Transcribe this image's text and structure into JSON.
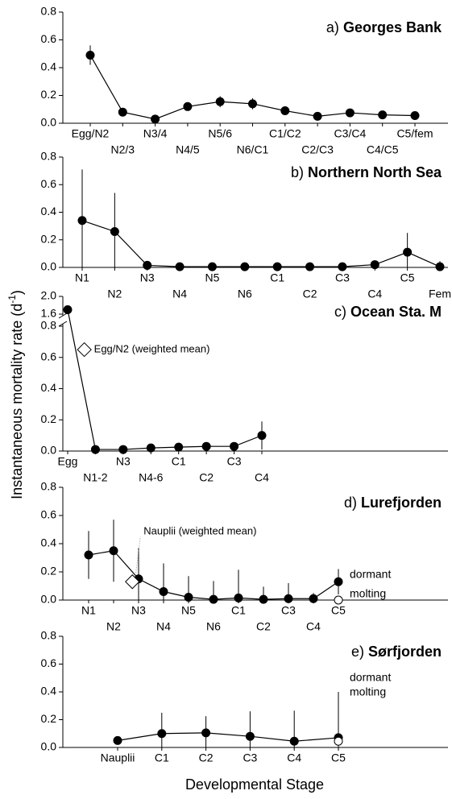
{
  "y_label": "Instantaneous mortality rate (d",
  "y_label_sup": "-1",
  "y_label_end": ")",
  "x_label": "Developmental Stage",
  "chart_data": [
    {
      "type": "line",
      "label": "a)",
      "title": "Georges Bank",
      "categories": [
        "Egg/N2",
        "N2/3",
        "N3/4",
        "N4/5",
        "N5/6",
        "N6/C1",
        "C1/C2",
        "C2/C3",
        "C3/C4",
        "C4/C5",
        "C5/fem"
      ],
      "values": [
        0.49,
        0.08,
        0.03,
        0.12,
        0.155,
        0.14,
        0.09,
        0.05,
        0.075,
        0.06,
        0.055
      ],
      "errors": [
        0.07,
        0.01,
        0,
        0.03,
        0.04,
        0.04,
        0.03,
        0.02,
        0.01,
        0,
        0.01
      ],
      "ylim": [
        0,
        0.8
      ],
      "yticks": [
        {
          "value": 0,
          "label": "0.0"
        },
        0.2,
        0.4,
        0.6,
        0.8
      ],
      "color": "#000000"
    },
    {
      "type": "line",
      "label": "b)",
      "title": "Northern North Sea",
      "categories": [
        "N1",
        "N2",
        "N3",
        "N4",
        "N5",
        "N6",
        "C1",
        "C2",
        "C3",
        "C4",
        "C5",
        "Fem"
      ],
      "values": [
        0.34,
        0.26,
        0.015,
        0.005,
        0.005,
        0.005,
        0.005,
        0.005,
        0.005,
        0.02,
        0.11,
        0.005
      ],
      "errors": [
        0.37,
        0.28,
        0,
        0,
        0,
        0,
        0,
        0,
        0,
        0.02,
        0.14,
        0.04
      ],
      "ylim": [
        0,
        0.8
      ],
      "yticks": [
        {
          "value": 0,
          "label": "0.0"
        },
        0.2,
        0.4,
        0.6,
        0.8
      ],
      "color": "#000000"
    },
    {
      "type": "line",
      "label": "c)",
      "title": "Ocean Sta. M",
      "categories": [
        "Egg",
        "N1-2",
        "N3",
        "N4-6",
        "C1",
        "C2",
        "C3",
        "C4"
      ],
      "values": [
        1.7,
        0.01,
        0.01,
        0.02,
        0.025,
        0.03,
        0.03,
        0.1
      ],
      "errors": [
        0,
        0,
        0,
        0,
        0,
        0,
        0,
        0.09
      ],
      "ylim": [
        0,
        2
      ],
      "axis_break": [
        0.8,
        1.6
      ],
      "yticks": [
        {
          "value": 0,
          "label": "0.0"
        },
        0.2,
        0.4,
        0.6,
        0.8,
        1.6,
        {
          "value": 2,
          "label": "2.0"
        }
      ],
      "annotation": {
        "text": "Egg/N2 (weighted mean)",
        "value": 0.65
      },
      "color": "#000000"
    },
    {
      "type": "line",
      "label": "d)",
      "title": "Lurefjorden",
      "categories": [
        "N1",
        "N2",
        "N3",
        "N4",
        "N5",
        "N6",
        "C1",
        "C2",
        "C3",
        "C4",
        "C5"
      ],
      "series": [
        {
          "name": "dormant",
          "color": "#000000",
          "values": [
            0.32,
            0.35,
            0.15,
            0.06,
            0.02,
            0.005,
            0.015,
            0.005,
            0.01,
            0.01,
            0.13
          ],
          "errors": [
            0.17,
            0.22,
            0.22,
            0.2,
            0.15,
            0.13,
            0.2,
            0.09,
            0.11,
            0.04,
            0.09
          ]
        },
        {
          "name": "molting",
          "color": "#ffffff",
          "values": [
            null,
            null,
            null,
            null,
            null,
            null,
            null,
            null,
            null,
            null,
            0
          ]
        }
      ],
      "ylim": [
        0,
        0.8
      ],
      "yticks": [
        {
          "value": 0,
          "label": "0.0"
        },
        0.2,
        0.4,
        0.6,
        0.8
      ],
      "annotation": {
        "text": "Nauplii (weighted mean)",
        "value": 0.13
      }
    },
    {
      "type": "line",
      "label": "e)",
      "title": "Sørfjorden",
      "categories": [
        "Nauplii",
        "C1",
        "C2",
        "C3",
        "C4",
        "C5"
      ],
      "series": [
        {
          "name": "dormant",
          "color": "#000000",
          "values": [
            0.05,
            0.1,
            0.105,
            0.08,
            0.045,
            0.07
          ],
          "errors": [
            0,
            0.15,
            0.12,
            0.18,
            0.22,
            0.33
          ]
        },
        {
          "name": "molting",
          "color": "#ffffff",
          "values": [
            null,
            null,
            null,
            null,
            null,
            0.045
          ]
        }
      ],
      "ylim": [
        0,
        0.8
      ],
      "yticks": [
        {
          "value": 0,
          "label": "0.0"
        },
        0.2,
        0.4,
        0.6,
        0.8
      ]
    }
  ]
}
